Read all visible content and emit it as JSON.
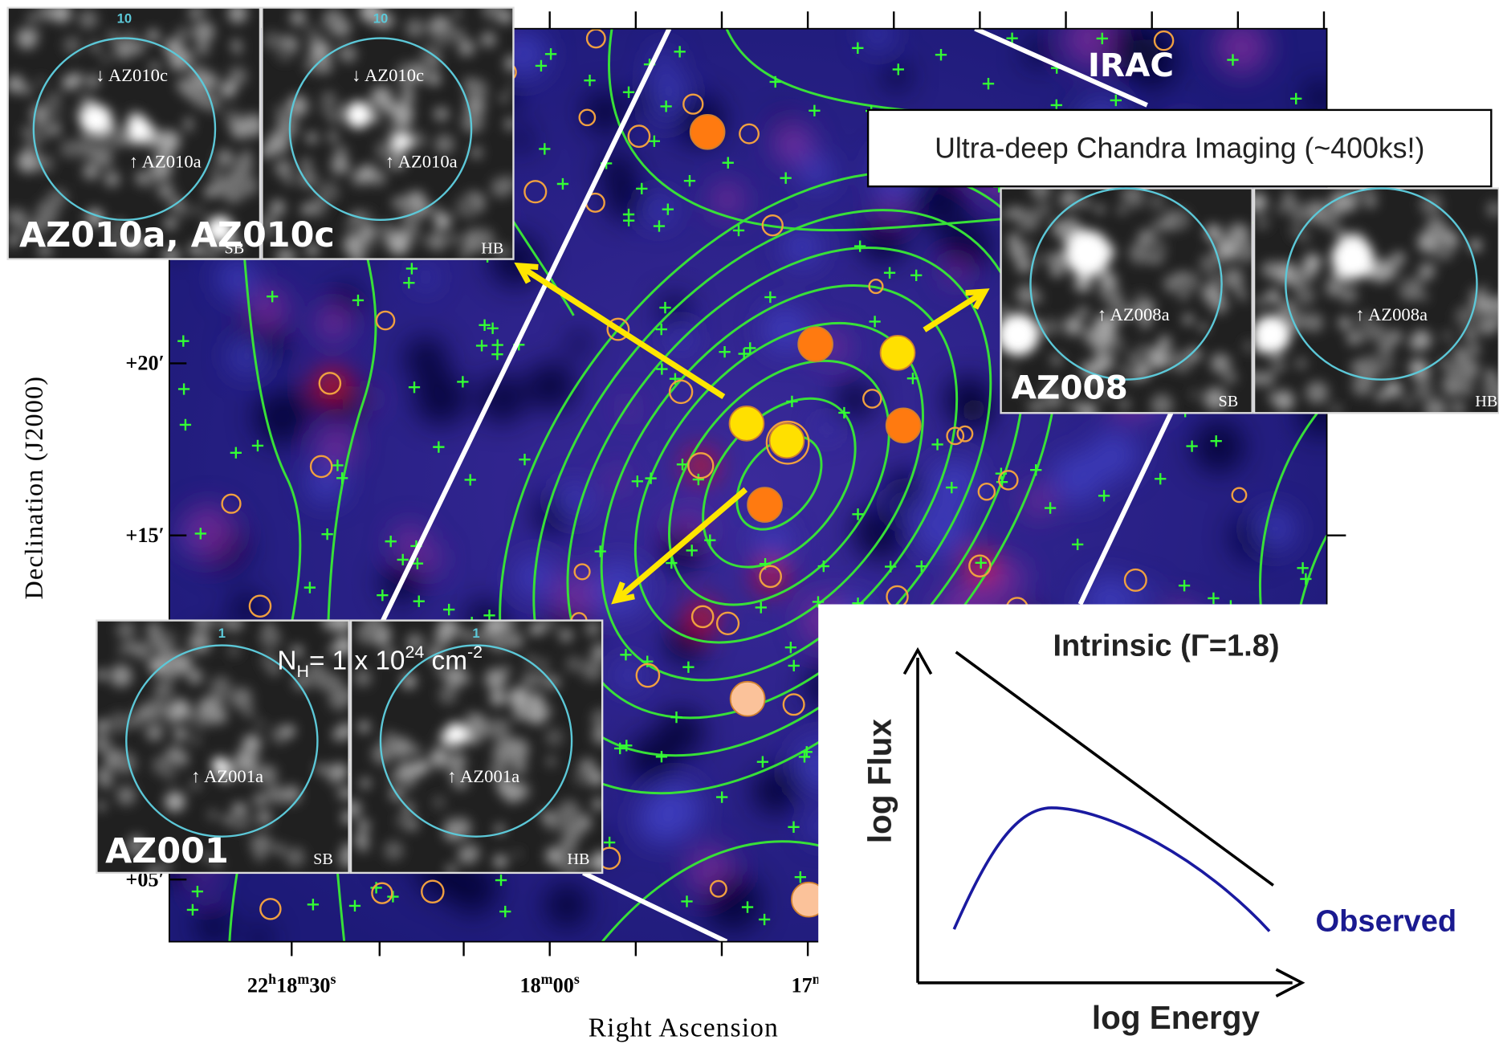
{
  "map": {
    "irac_label": "IRAC",
    "y_axis_label": "Declination (J2000)",
    "x_axis_label": "Right Ascension",
    "y_ticks": [
      "+20′",
      "+15′",
      "+05′"
    ],
    "x_ticks": [
      [
        [
          "22",
          "h"
        ],
        [
          "18",
          "m"
        ],
        [
          "30",
          "s"
        ]
      ],
      [
        [
          "18",
          "m"
        ],
        [
          "00",
          "s"
        ]
      ],
      [
        [
          "17",
          "m"
        ]
      ]
    ]
  },
  "callout": "Ultra-deep Chandra Imaging (~400ks!)",
  "insets": [
    {
      "title": "AZ010a, AZ010c",
      "panels": [
        {
          "number": "10",
          "labels": [
            "↓ AZ010c",
            "↑ AZ010a"
          ],
          "band": "SB"
        },
        {
          "number": "10",
          "labels": [
            "↓ AZ010c",
            "↑ AZ010a"
          ],
          "band": "HB"
        }
      ]
    },
    {
      "title": "AZ008",
      "panels": [
        {
          "labels": [
            "↑ AZ008a"
          ],
          "band": "SB"
        },
        {
          "labels": [
            "↑ AZ008a"
          ],
          "band": "HB"
        }
      ]
    },
    {
      "title": "AZ001",
      "panels": [
        {
          "number": "1",
          "labels": [
            "↑ AZ001a"
          ],
          "band": "SB"
        },
        {
          "number": "1",
          "labels": [
            "↑ AZ001a"
          ],
          "band": "HB"
        }
      ]
    }
  ],
  "nh_label": [
    "N",
    "H",
    "= 1 x 10",
    "24",
    " cm",
    "-2"
  ],
  "spectrum": {
    "intrinsic": "Intrinsic (Γ=1.8)",
    "observed": "Observed",
    "y_label": "log Flux",
    "x_label": "log Energy"
  }
}
